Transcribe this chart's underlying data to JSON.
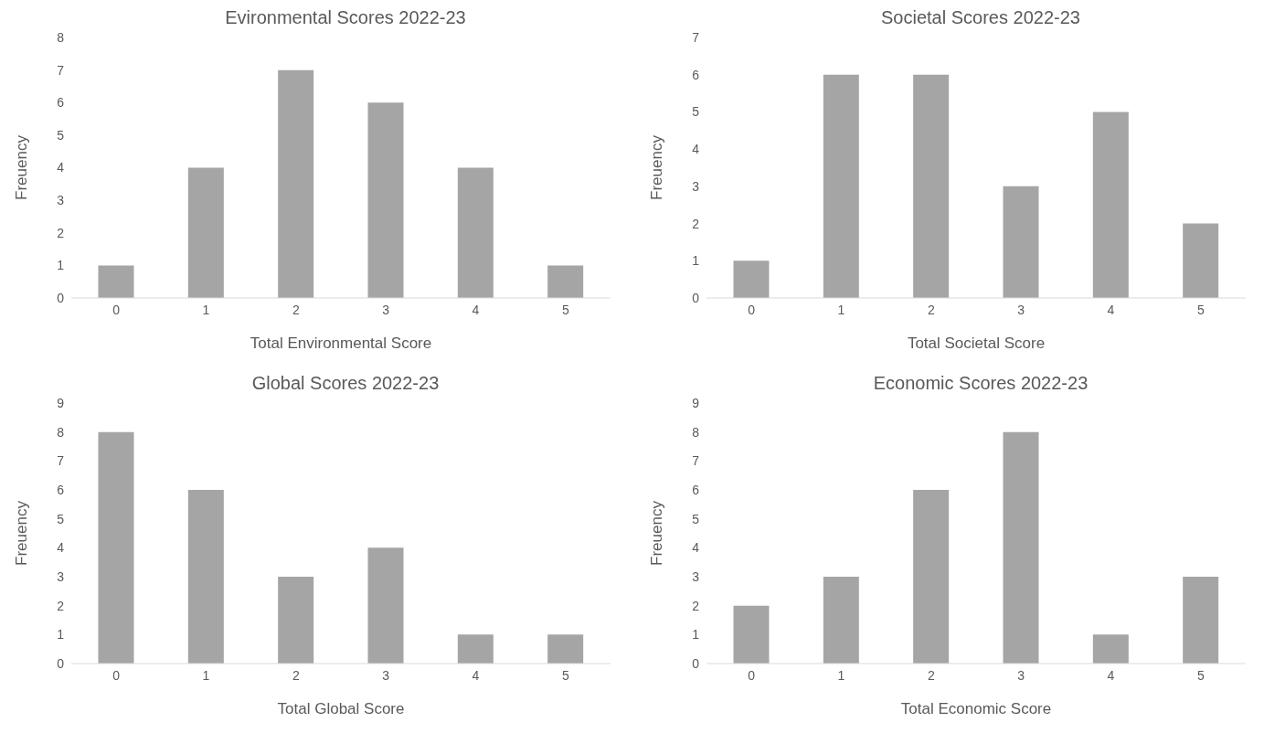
{
  "chart_data": [
    {
      "type": "bar",
      "title": "Evironmental Scores 2022-23",
      "xlabel": "Total Environmental Score",
      "ylabel": "Freuency",
      "categories": [
        "0",
        "1",
        "2",
        "3",
        "4",
        "5"
      ],
      "values": [
        1,
        4,
        7,
        6,
        4,
        1
      ],
      "color": "#a5a5a5",
      "ylim": [
        0,
        8
      ],
      "yticks": [
        0,
        1,
        2,
        3,
        4,
        5,
        6,
        7,
        8
      ]
    },
    {
      "type": "bar",
      "title": "Societal Scores 2022-23",
      "xlabel": "Total Societal Score",
      "ylabel": "Freuency",
      "categories": [
        "0",
        "1",
        "2",
        "3",
        "4",
        "5"
      ],
      "values": [
        1,
        6,
        6,
        3,
        5,
        2
      ],
      "color": "#a5a5a5",
      "ylim": [
        0,
        7
      ],
      "yticks": [
        0,
        1,
        2,
        3,
        4,
        5,
        6,
        7
      ]
    },
    {
      "type": "bar",
      "title": "Global Scores 2022-23",
      "xlabel": "Total Global Score",
      "ylabel": "Freuency",
      "categories": [
        "0",
        "1",
        "2",
        "3",
        "4",
        "5"
      ],
      "values": [
        8,
        6,
        3,
        4,
        1,
        1
      ],
      "color": "#a5a5a5",
      "ylim": [
        0,
        9
      ],
      "yticks": [
        0,
        1,
        2,
        3,
        4,
        5,
        6,
        7,
        8,
        9
      ]
    },
    {
      "type": "bar",
      "title": "Economic Scores 2022-23",
      "xlabel": "Total Economic Score",
      "ylabel": "Freuency",
      "categories": [
        "0",
        "1",
        "2",
        "3",
        "4",
        "5"
      ],
      "values": [
        2,
        3,
        6,
        8,
        1,
        3
      ],
      "color": "#a5a5a5",
      "ylim": [
        0,
        9
      ],
      "yticks": [
        0,
        1,
        2,
        3,
        4,
        5,
        6,
        7,
        8,
        9
      ]
    }
  ]
}
